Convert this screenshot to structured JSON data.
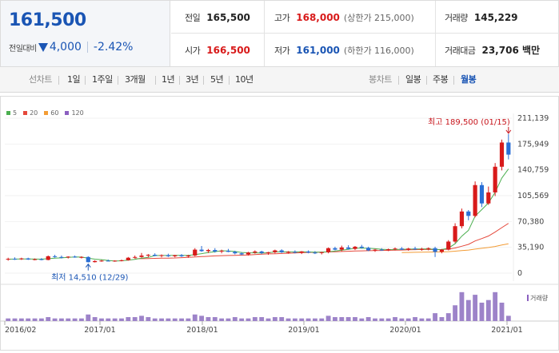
{
  "header": {
    "price": "161,500",
    "change_label": "전일대비",
    "change_value": "4,000",
    "change_pct": "-2.42%",
    "stats": {
      "prev_close": {
        "label": "전일",
        "value": "165,500"
      },
      "high": {
        "label": "고가",
        "value": "168,000",
        "sub": "(상한가 215,000)"
      },
      "volume": {
        "label": "거래량",
        "value": "145,229"
      },
      "open": {
        "label": "시가",
        "value": "166,500"
      },
      "low": {
        "label": "저가",
        "value": "161,000",
        "sub": "(하한가 116,000)"
      },
      "amount": {
        "label": "거래대금",
        "value": "23,706 백만"
      }
    }
  },
  "period_bar": {
    "line_label": "선차트",
    "line_items": [
      "1일",
      "1주일",
      "3개월",
      "1년",
      "3년",
      "5년",
      "10년"
    ],
    "candle_label": "봉차트",
    "candle_items": [
      "일봉",
      "주봉",
      "월봉"
    ],
    "active": "월봉"
  },
  "legend": [
    {
      "label": "5",
      "color": "#4caf50"
    },
    {
      "label": "20",
      "color": "#e5483b"
    },
    {
      "label": "60",
      "color": "#f39c35"
    },
    {
      "label": "120",
      "color": "#8b5fc0"
    }
  ],
  "chart_data": {
    "type": "candlestick",
    "period": "monthly",
    "y_ticks": [
      "211,139",
      "175,949",
      "140,759",
      "105,569",
      "70,380",
      "35,190",
      "0"
    ],
    "ylim": [
      0,
      211139
    ],
    "x_ticks": [
      "2016/02",
      "2017/01",
      "2018/01",
      "2019/01",
      "2020/01",
      "2021/01"
    ],
    "volume_label": "거래량",
    "annotations": {
      "max": {
        "text": "최고 189,500 (01/15)",
        "value": 189500
      },
      "min": {
        "text": "최저 14,510 (12/29)",
        "value": 14510
      }
    },
    "colors": {
      "up": "#d81a1a",
      "down": "#2a6fd6"
    },
    "candles": [
      {
        "o": 18500,
        "h": 21000,
        "l": 17000,
        "c": 19500
      },
      {
        "o": 19500,
        "h": 21500,
        "l": 18000,
        "c": 19000
      },
      {
        "o": 19000,
        "h": 21000,
        "l": 18000,
        "c": 20000
      },
      {
        "o": 20000,
        "h": 21000,
        "l": 18000,
        "c": 18500
      },
      {
        "o": 18500,
        "h": 20000,
        "l": 17500,
        "c": 19000
      },
      {
        "o": 19000,
        "h": 20500,
        "l": 17500,
        "c": 18000
      },
      {
        "o": 18000,
        "h": 24000,
        "l": 17500,
        "c": 23000
      },
      {
        "o": 23000,
        "h": 25000,
        "l": 21000,
        "c": 22000
      },
      {
        "o": 22000,
        "h": 24000,
        "l": 20000,
        "c": 21500
      },
      {
        "o": 21500,
        "h": 23000,
        "l": 20000,
        "c": 22500
      },
      {
        "o": 22500,
        "h": 24000,
        "l": 21000,
        "c": 21500
      },
      {
        "o": 21500,
        "h": 23000,
        "l": 20000,
        "c": 22000
      },
      {
        "o": 22000,
        "h": 23000,
        "l": 14510,
        "c": 15000
      },
      {
        "o": 15000,
        "h": 17500,
        "l": 14510,
        "c": 16500
      },
      {
        "o": 16500,
        "h": 18000,
        "l": 15500,
        "c": 17000
      },
      {
        "o": 17000,
        "h": 18500,
        "l": 16000,
        "c": 16500
      },
      {
        "o": 16500,
        "h": 17500,
        "l": 15500,
        "c": 17000
      },
      {
        "o": 17000,
        "h": 18500,
        "l": 16000,
        "c": 17500
      },
      {
        "o": 17500,
        "h": 22000,
        "l": 17000,
        "c": 21000
      },
      {
        "o": 21000,
        "h": 24000,
        "l": 20000,
        "c": 22000
      },
      {
        "o": 22000,
        "h": 27500,
        "l": 21000,
        "c": 24000
      },
      {
        "o": 24000,
        "h": 26000,
        "l": 21500,
        "c": 25000
      },
      {
        "o": 25000,
        "h": 27000,
        "l": 23000,
        "c": 23500
      },
      {
        "o": 23500,
        "h": 25500,
        "l": 21500,
        "c": 24500
      },
      {
        "o": 24500,
        "h": 26500,
        "l": 22000,
        "c": 23000
      },
      {
        "o": 23000,
        "h": 25000,
        "l": 21500,
        "c": 24500
      },
      {
        "o": 24500,
        "h": 26000,
        "l": 22000,
        "c": 23000
      },
      {
        "o": 23000,
        "h": 25000,
        "l": 21000,
        "c": 24000
      },
      {
        "o": 24000,
        "h": 34000,
        "l": 23000,
        "c": 32000
      },
      {
        "o": 32000,
        "h": 37000,
        "l": 29000,
        "c": 30000
      },
      {
        "o": 30000,
        "h": 33000,
        "l": 27500,
        "c": 31500
      },
      {
        "o": 31500,
        "h": 34000,
        "l": 28000,
        "c": 29500
      },
      {
        "o": 29500,
        "h": 32000,
        "l": 27000,
        "c": 30500
      },
      {
        "o": 30500,
        "h": 33000,
        "l": 28500,
        "c": 29000
      },
      {
        "o": 29000,
        "h": 30500,
        "l": 25500,
        "c": 27000
      },
      {
        "o": 27000,
        "h": 28500,
        "l": 24500,
        "c": 25500
      },
      {
        "o": 25500,
        "h": 29000,
        "l": 24000,
        "c": 28000
      },
      {
        "o": 28000,
        "h": 31000,
        "l": 26500,
        "c": 29500
      },
      {
        "o": 29500,
        "h": 30500,
        "l": 26000,
        "c": 27500
      },
      {
        "o": 27500,
        "h": 29000,
        "l": 25000,
        "c": 28500
      },
      {
        "o": 28500,
        "h": 32000,
        "l": 27000,
        "c": 31000
      },
      {
        "o": 31000,
        "h": 32500,
        "l": 27500,
        "c": 28500
      },
      {
        "o": 28500,
        "h": 30000,
        "l": 26500,
        "c": 29000
      },
      {
        "o": 29000,
        "h": 31000,
        "l": 27000,
        "c": 28000
      },
      {
        "o": 28000,
        "h": 30000,
        "l": 26000,
        "c": 29500
      },
      {
        "o": 29500,
        "h": 31000,
        "l": 27000,
        "c": 28000
      },
      {
        "o": 28000,
        "h": 30000,
        "l": 26000,
        "c": 27500
      },
      {
        "o": 27500,
        "h": 29000,
        "l": 25500,
        "c": 28500
      },
      {
        "o": 28500,
        "h": 35000,
        "l": 27000,
        "c": 34000
      },
      {
        "o": 34000,
        "h": 36000,
        "l": 31000,
        "c": 32000
      },
      {
        "o": 32000,
        "h": 37500,
        "l": 30000,
        "c": 35000
      },
      {
        "o": 35000,
        "h": 38000,
        "l": 32000,
        "c": 33000
      },
      {
        "o": 33000,
        "h": 37000,
        "l": 31500,
        "c": 36000
      },
      {
        "o": 36000,
        "h": 38500,
        "l": 33500,
        "c": 34500
      },
      {
        "o": 34500,
        "h": 36000,
        "l": 30000,
        "c": 31000
      },
      {
        "o": 31000,
        "h": 33000,
        "l": 29000,
        "c": 32000
      },
      {
        "o": 32000,
        "h": 34000,
        "l": 30500,
        "c": 31000
      },
      {
        "o": 31000,
        "h": 33500,
        "l": 30000,
        "c": 32500
      },
      {
        "o": 32500,
        "h": 35000,
        "l": 31000,
        "c": 33500
      },
      {
        "o": 33500,
        "h": 35500,
        "l": 31500,
        "c": 32000
      },
      {
        "o": 32000,
        "h": 34500,
        "l": 30500,
        "c": 33500
      },
      {
        "o": 33500,
        "h": 36000,
        "l": 31500,
        "c": 32500
      },
      {
        "o": 32500,
        "h": 34500,
        "l": 30500,
        "c": 33000
      },
      {
        "o": 33000,
        "h": 35000,
        "l": 31000,
        "c": 34000
      },
      {
        "o": 34000,
        "h": 36000,
        "l": 22000,
        "c": 29000
      },
      {
        "o": 29000,
        "h": 33000,
        "l": 27000,
        "c": 32000
      },
      {
        "o": 32000,
        "h": 45000,
        "l": 31000,
        "c": 43000
      },
      {
        "o": 43000,
        "h": 68000,
        "l": 41000,
        "c": 64000
      },
      {
        "o": 64000,
        "h": 88000,
        "l": 61000,
        "c": 84000
      },
      {
        "o": 84000,
        "h": 86000,
        "l": 72000,
        "c": 78000
      },
      {
        "o": 78000,
        "h": 125000,
        "l": 76000,
        "c": 120000
      },
      {
        "o": 120000,
        "h": 124000,
        "l": 90000,
        "c": 95000
      },
      {
        "o": 95000,
        "h": 118000,
        "l": 93000,
        "c": 110000
      },
      {
        "o": 110000,
        "h": 150000,
        "l": 105000,
        "c": 145000
      },
      {
        "o": 145000,
        "h": 182000,
        "l": 140000,
        "c": 178000
      },
      {
        "o": 178000,
        "h": 189500,
        "l": 155000,
        "c": 161500
      }
    ],
    "ma5": [
      19000,
      19200,
      19400,
      19400,
      19200,
      19100,
      19700,
      20300,
      20800,
      21500,
      22100,
      21900,
      20500,
      19100,
      18400,
      17300,
      16400,
      16900,
      17700,
      18800,
      20300,
      21500,
      23900,
      24000,
      24000,
      24200,
      24300,
      24000,
      25400,
      26600,
      28000,
      29300,
      30500,
      30300,
      29500,
      28200,
      27800,
      27600,
      27500,
      27800,
      28900,
      29100,
      28900,
      29000,
      29200,
      28800,
      28500,
      28600,
      29200,
      30000,
      31200,
      32400,
      34000,
      34100,
      33900,
      33300,
      32500,
      32100,
      32200,
      32500,
      32600,
      32900,
      32900,
      33100,
      32400,
      32100,
      34200,
      40000,
      50400,
      58300,
      77600,
      86600,
      95800,
      110000,
      129600,
      142000
    ],
    "ma20": [
      null,
      null,
      null,
      null,
      null,
      null,
      null,
      null,
      null,
      null,
      null,
      null,
      null,
      null,
      null,
      null,
      null,
      null,
      null,
      19600,
      19700,
      19900,
      20100,
      20300,
      20500,
      20700,
      21100,
      21500,
      22100,
      22500,
      23000,
      23500,
      23800,
      24100,
      24300,
      24500,
      24800,
      25300,
      25800,
      26200,
      26500,
      26800,
      27100,
      27500,
      27900,
      28200,
      28400,
      28600,
      28900,
      29200,
      29500,
      29800,
      30100,
      30400,
      30600,
      30700,
      30900,
      31100,
      31300,
      31500,
      31800,
      32000,
      32200,
      32200,
      32100,
      32200,
      32700,
      34300,
      36700,
      39200,
      43900,
      47100,
      50600,
      55900,
      62000,
      67800
    ],
    "ma60": [
      null,
      null,
      null,
      null,
      null,
      null,
      null,
      null,
      null,
      null,
      null,
      null,
      null,
      null,
      null,
      null,
      null,
      null,
      null,
      null,
      null,
      null,
      null,
      null,
      null,
      null,
      null,
      null,
      null,
      null,
      null,
      null,
      null,
      null,
      null,
      null,
      null,
      null,
      null,
      null,
      null,
      null,
      null,
      null,
      null,
      null,
      null,
      null,
      null,
      null,
      null,
      null,
      null,
      null,
      null,
      null,
      null,
      null,
      null,
      28000,
      28200,
      28400,
      28600,
      28700,
      28800,
      29000,
      29300,
      29900,
      30700,
      31400,
      32800,
      33800,
      34900,
      36400,
      38300,
      40000
    ],
    "volume": [
      2,
      2,
      2,
      2,
      2,
      2,
      3,
      2,
      2,
      2,
      2,
      2,
      5,
      3,
      2,
      2,
      2,
      2,
      3,
      3,
      4,
      3,
      2,
      2,
      2,
      2,
      2,
      2,
      5,
      4,
      3,
      3,
      2,
      2,
      3,
      2,
      2,
      3,
      3,
      2,
      3,
      3,
      2,
      2,
      2,
      2,
      2,
      2,
      4,
      3,
      3,
      3,
      3,
      2,
      3,
      2,
      2,
      2,
      3,
      2,
      2,
      3,
      2,
      2,
      6,
      3,
      6,
      12,
      22,
      16,
      20,
      14,
      16,
      22,
      14,
      4
    ]
  }
}
